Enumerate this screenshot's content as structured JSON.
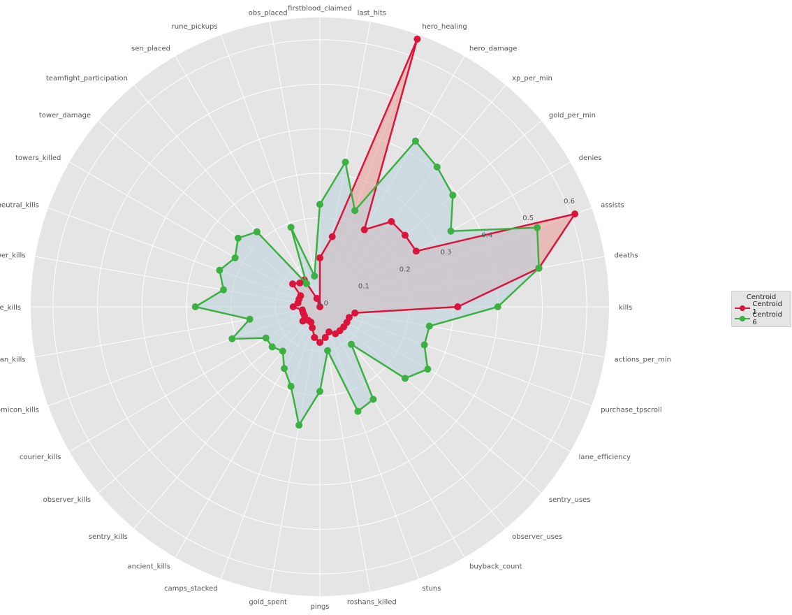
{
  "chart_data": {
    "type": "radar",
    "categories": [
      "kills",
      "deaths",
      "assists",
      "denies",
      "gold_per_min",
      "xp_per_min",
      "hero_damage",
      "hero_healing",
      "last_hits",
      "firstblood_claimed",
      "obs_placed",
      "rune_pickups",
      "sen_placed",
      "teamfight_participation",
      "tower_damage",
      "towers_killed",
      "neutral_kills",
      "tower_kills",
      "lane_kills",
      "roshan_kills",
      "necronomicon_kills",
      "courier_kills",
      "observer_kills",
      "sentry_kills",
      "ancient_kills",
      "camps_stacked",
      "gold_spent",
      "pings",
      "roshans_killed",
      "stuns",
      "buyback_count",
      "observer_uses",
      "sentry_uses",
      "lane_efficiency",
      "purchase_tpscroll",
      "actions_per_min"
    ],
    "rmax": 0.65,
    "rticks": [
      0.0,
      0.1,
      0.2,
      0.3,
      0.4,
      0.5,
      0.6
    ],
    "rtick_labels": [
      "0.0",
      "0.1",
      "0.2",
      "0.3",
      "0.4",
      "0.5",
      "0.6"
    ],
    "grid": true,
    "legend": {
      "title": "Centroid",
      "placement": "right"
    },
    "series": [
      {
        "name": "Centroid 1",
        "color": "#dc143c",
        "fill": "#e8a09a",
        "values": [
          0.31,
          0.5,
          0.61,
          0.25,
          0.25,
          0.25,
          0.2,
          0.64,
          0.16,
          0.11,
          0.0,
          0.02,
          0.07,
          0.07,
          0.08,
          0.05,
          0.05,
          0.05,
          0.06,
          0.04,
          0.04,
          0.04,
          0.05,
          0.04,
          0.04,
          0.05,
          0.07,
          0.08,
          0.07,
          0.06,
          0.07,
          0.07,
          0.07,
          0.07,
          0.07,
          0.08
        ]
      },
      {
        "name": "Centroid 6",
        "color": "#3cb043",
        "fill": "#bcd2dc",
        "values": [
          0.4,
          0.5,
          0.52,
          0.34,
          0.39,
          0.41,
          0.43,
          0.23,
          0.33,
          0.23,
          0.07,
          0.19,
          0.06,
          0.22,
          0.24,
          0.22,
          0.24,
          0.22,
          0.28,
          0.16,
          0.21,
          0.14,
          0.14,
          0.13,
          0.16,
          0.19,
          0.27,
          0.19,
          0.1,
          0.25,
          0.24,
          0.11,
          0.25,
          0.28,
          0.25,
          0.25
        ]
      }
    ]
  }
}
